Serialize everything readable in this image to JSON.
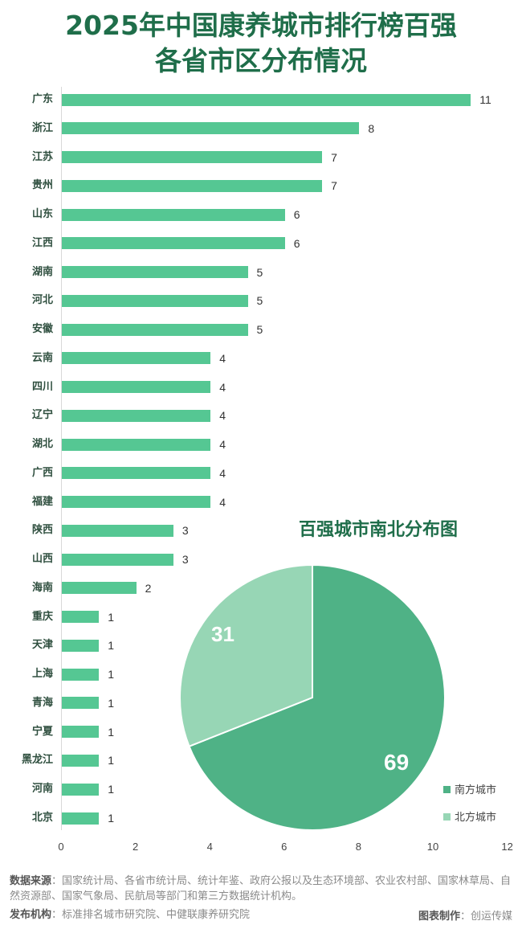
{
  "title": {
    "line1": "2025年中国康养城市排行榜百强",
    "line2": "各省市区分布情况"
  },
  "colors": {
    "title": "#1f6e4a",
    "bar": "#55c793",
    "pie_south": "#4fb286",
    "pie_north": "#97d6b5"
  },
  "chart_data": [
    {
      "type": "bar",
      "orientation": "horizontal",
      "title": "2025年中国康养城市排行榜百强各省市区分布情况",
      "categories": [
        "广东",
        "浙江",
        "江苏",
        "贵州",
        "山东",
        "江西",
        "湖南",
        "河北",
        "安徽",
        "云南",
        "四川",
        "辽宁",
        "湖北",
        "广西",
        "福建",
        "陕西",
        "山西",
        "海南",
        "重庆",
        "天津",
        "上海",
        "青海",
        "宁夏",
        "黑龙江",
        "河南",
        "北京"
      ],
      "values": [
        11,
        8,
        7,
        7,
        6,
        6,
        5,
        5,
        5,
        4,
        4,
        4,
        4,
        4,
        4,
        3,
        3,
        2,
        1,
        1,
        1,
        1,
        1,
        1,
        1,
        1
      ],
      "xlabel": "",
      "ylabel": "",
      "xlim": [
        0,
        12
      ],
      "xticks": [
        0,
        2,
        4,
        6,
        8,
        10,
        12
      ],
      "data_labels": true,
      "grid": false
    },
    {
      "type": "pie",
      "title": "百强城市南北分布图",
      "categories": [
        "南方城市",
        "北方城市"
      ],
      "values": [
        69,
        31
      ],
      "legend_position": "right-bottom"
    }
  ],
  "axis": {
    "ticks": [
      "0",
      "2",
      "4",
      "6",
      "8",
      "10",
      "12"
    ]
  },
  "pie": {
    "title": "百强城市南北分布图",
    "south_label": "69",
    "north_label": "31",
    "legend": [
      {
        "label": "南方城市",
        "color": "#4fb286"
      },
      {
        "label": "北方城市",
        "color": "#97d6b5"
      }
    ]
  },
  "footer": {
    "source_label": "数据来源",
    "source_text": "：国家统计局、各省市统计局、统计年鉴、政府公报以及生态环境部、农业农村部、国家林草局、自然资源部、国家气象局、民航局等部门和第三方数据统计机构。",
    "publisher_label": "发布机构",
    "publisher_text": "：标准排名城市研究院、中健联康养研究院",
    "credit_label": "图表制作",
    "credit_text": "：创运传媒"
  }
}
